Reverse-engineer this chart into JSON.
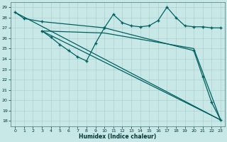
{
  "xlabel": "Humidex (Indice chaleur)",
  "background_color": "#c8e8e8",
  "line_color": "#006060",
  "grid_color": "#aacaca",
  "xlim": [
    -0.5,
    23.5
  ],
  "ylim": [
    17.5,
    29.5
  ],
  "yticks": [
    18,
    19,
    20,
    21,
    22,
    23,
    24,
    25,
    26,
    27,
    28,
    29
  ],
  "xticks": [
    0,
    1,
    2,
    3,
    4,
    5,
    6,
    7,
    8,
    9,
    10,
    11,
    12,
    13,
    14,
    15,
    16,
    17,
    18,
    19,
    20,
    21,
    22,
    23
  ],
  "line1_x": [
    0,
    1,
    3,
    10,
    11,
    12,
    13,
    14,
    15,
    16,
    17,
    18,
    19,
    20,
    21,
    22,
    23
  ],
  "line1_y": [
    28.5,
    27.9,
    27.6,
    27.0,
    28.3,
    27.5,
    27.2,
    27.1,
    27.2,
    27.7,
    29.0,
    28.0,
    27.2,
    27.1,
    27.1,
    27.0,
    27.0
  ],
  "line2_x": [
    3,
    4,
    5,
    6,
    7,
    8,
    9,
    10,
    20,
    21,
    22,
    23
  ],
  "line2_y": [
    26.7,
    26.1,
    25.4,
    24.8,
    24.2,
    23.8,
    25.5,
    27.0,
    24.8,
    22.3,
    19.8,
    18.1
  ],
  "line3_x": [
    0,
    23
  ],
  "line3_y": [
    28.5,
    18.1
  ],
  "line4_x": [
    3,
    23
  ],
  "line4_y": [
    26.7,
    18.1
  ],
  "line5_x": [
    3,
    10,
    20,
    23
  ],
  "line5_y": [
    26.7,
    26.5,
    25.0,
    18.1
  ]
}
